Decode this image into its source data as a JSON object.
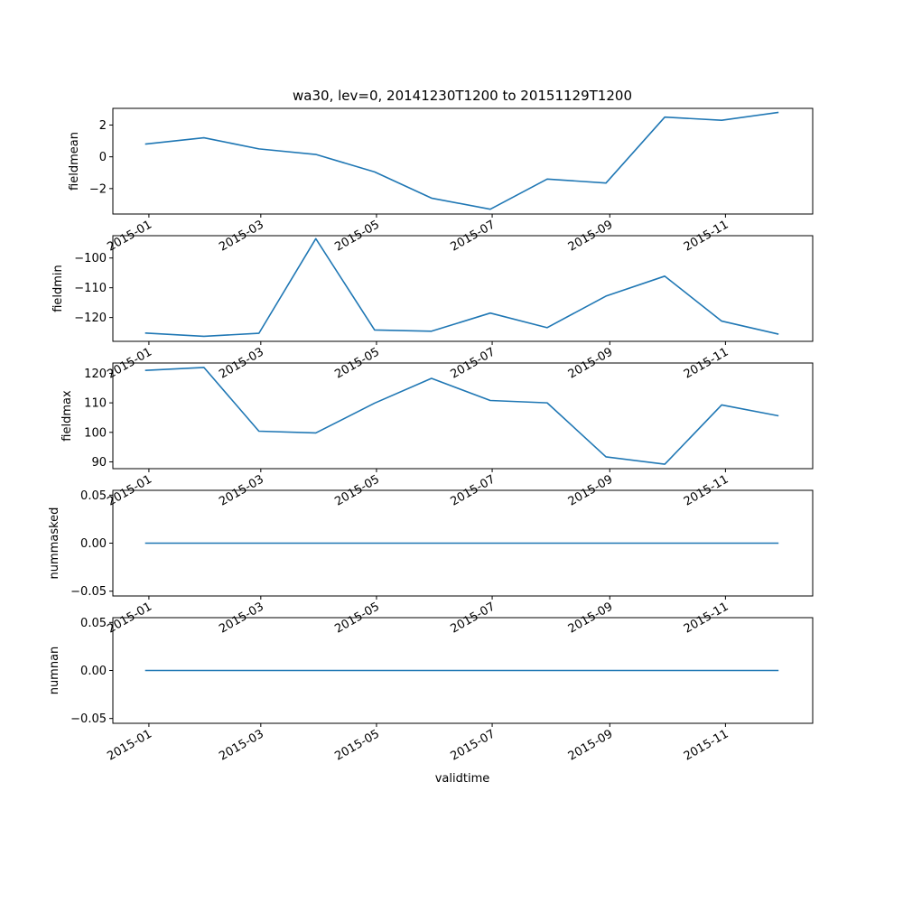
{
  "figure": {
    "title": "wa30, lev=0, 20141230T1200 to 20151129T1200",
    "xlabel": "validtime"
  },
  "colors": {
    "line": "#1f77b4"
  },
  "chart_data": [
    {
      "type": "line",
      "ylabel": "fieldmean",
      "x": [
        "2014-12-30",
        "2015-01-30",
        "2015-02-28",
        "2015-03-30",
        "2015-04-30",
        "2015-05-30",
        "2015-06-30",
        "2015-07-30",
        "2015-08-30",
        "2015-09-30",
        "2015-10-30",
        "2015-11-29"
      ],
      "y": [
        0.8,
        1.2,
        0.5,
        0.15,
        -0.95,
        -2.6,
        -3.3,
        -1.4,
        -1.65,
        2.5,
        2.3,
        2.8
      ],
      "ylim": [
        -3.6,
        3.05
      ],
      "yticks": [
        -2,
        0,
        2
      ],
      "ytick_labels": [
        "−2",
        "0",
        "2"
      ]
    },
    {
      "type": "line",
      "ylabel": "fieldmin",
      "x": [
        "2014-12-30",
        "2015-01-30",
        "2015-02-28",
        "2015-03-30",
        "2015-04-30",
        "2015-05-30",
        "2015-06-30",
        "2015-07-30",
        "2015-08-30",
        "2015-09-30",
        "2015-10-30",
        "2015-11-29"
      ],
      "y": [
        -125.2,
        -126.3,
        -125.3,
        -93.5,
        -124.2,
        -124.6,
        -118.5,
        -123.4,
        -112.8,
        -106.1,
        -121.2,
        -125.6
      ],
      "ylim": [
        -128,
        -92.5
      ],
      "yticks": [
        -100,
        -110,
        -120
      ],
      "ytick_labels": [
        "−100",
        "−110",
        "−120"
      ]
    },
    {
      "type": "line",
      "ylabel": "fieldmax",
      "x": [
        "2014-12-30",
        "2015-01-30",
        "2015-02-28",
        "2015-03-30",
        "2015-04-30",
        "2015-05-30",
        "2015-06-30",
        "2015-07-30",
        "2015-08-30",
        "2015-09-30",
        "2015-10-30",
        "2015-11-29"
      ],
      "y": [
        121,
        122,
        100.4,
        99.8,
        109.9,
        118.3,
        110.8,
        110,
        91.7,
        89.2,
        109.3,
        105.6
      ],
      "ylim": [
        87.7,
        123.5
      ],
      "yticks": [
        90,
        100,
        110,
        120
      ],
      "ytick_labels": [
        "90",
        "100",
        "110",
        "120"
      ]
    },
    {
      "type": "line",
      "ylabel": "nummasked",
      "x": [
        "2014-12-30",
        "2015-01-30",
        "2015-02-28",
        "2015-03-30",
        "2015-04-30",
        "2015-05-30",
        "2015-06-30",
        "2015-07-30",
        "2015-08-30",
        "2015-09-30",
        "2015-10-30",
        "2015-11-29"
      ],
      "y": [
        0,
        0,
        0,
        0,
        0,
        0,
        0,
        0,
        0,
        0,
        0,
        0
      ],
      "ylim": [
        -0.055,
        0.055
      ],
      "yticks": [
        0.05,
        0.0,
        -0.05
      ],
      "ytick_labels": [
        "0.05",
        "0.00",
        "−0.05"
      ]
    },
    {
      "type": "line",
      "ylabel": "numnan",
      "x": [
        "2014-12-30",
        "2015-01-30",
        "2015-02-28",
        "2015-03-30",
        "2015-04-30",
        "2015-05-30",
        "2015-06-30",
        "2015-07-30",
        "2015-08-30",
        "2015-09-30",
        "2015-10-30",
        "2015-11-29"
      ],
      "y": [
        0,
        0,
        0,
        0,
        0,
        0,
        0,
        0,
        0,
        0,
        0,
        0
      ],
      "ylim": [
        -0.055,
        0.055
      ],
      "yticks": [
        0.05,
        0.0,
        -0.05
      ],
      "ytick_labels": [
        "0.05",
        "0.00",
        "−0.05"
      ]
    }
  ],
  "xaxis": {
    "range": [
      "2014-12-13",
      "2015-12-17"
    ],
    "ticks": [
      "2015-01-01",
      "2015-03-01",
      "2015-05-01",
      "2015-07-01",
      "2015-09-01",
      "2015-11-01"
    ],
    "tick_labels": [
      "2015-01",
      "2015-03",
      "2015-05",
      "2015-07",
      "2015-09",
      "2015-11"
    ],
    "rotation": 30
  }
}
